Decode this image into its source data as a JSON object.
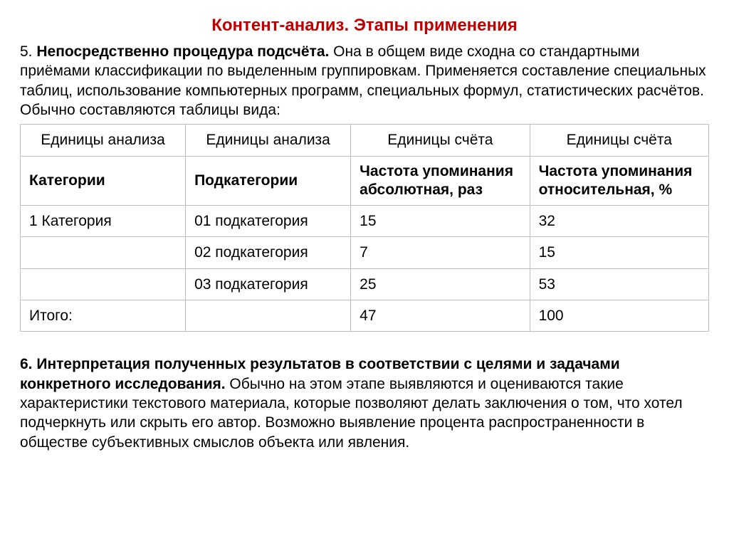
{
  "title": "Контент-анализ. Этапы применения",
  "p5": {
    "num": "5. ",
    "heading": "Непосредственно процедура подсчёта.",
    "text": " Она в общем виде сходна со стандартными приёмами классификации по выделенным группировкам. Применяется составление специальных таблиц, использование компьютерных программ, специальных формул, статистических расчётов. Обычно составляются таблицы вида:"
  },
  "table": {
    "header_cols": [
      "Единицы анализа",
      "Единицы анализа",
      "Единицы счёта",
      "Единицы счёта"
    ],
    "sub_cols": [
      "Категории",
      "Подкатегории",
      "Частота упоминания абсолютная, раз",
      "Частота упоминания относительная, %"
    ],
    "rows": [
      [
        "1 Категория",
        "01 подкатегория",
        "15",
        "32"
      ],
      [
        "",
        "02 подкатегория",
        "7",
        "15"
      ],
      [
        "",
        "03 подкатегория",
        "25",
        "53"
      ],
      [
        "Итого:",
        "",
        "47",
        "100"
      ]
    ],
    "border_color": "#bfbfbf",
    "bg_color": "#ffffff",
    "font_size": 21
  },
  "p6": {
    "num": "6. ",
    "heading": "Интерпретация полученных результатов в соответствии с целями и задачами конкретного исследования.",
    "text": " Обычно на этом этапе выявляются и оцениваются такие характеристики текстового материала, которые позволяют делать заключения о том, что хотел подчеркнуть или скрыть его автор. Возможно выявление процента распространенности в обществе субъективных смыслов объекта или явления."
  },
  "colors": {
    "title": "#c00000",
    "text": "#000000",
    "background": "#ffffff"
  }
}
